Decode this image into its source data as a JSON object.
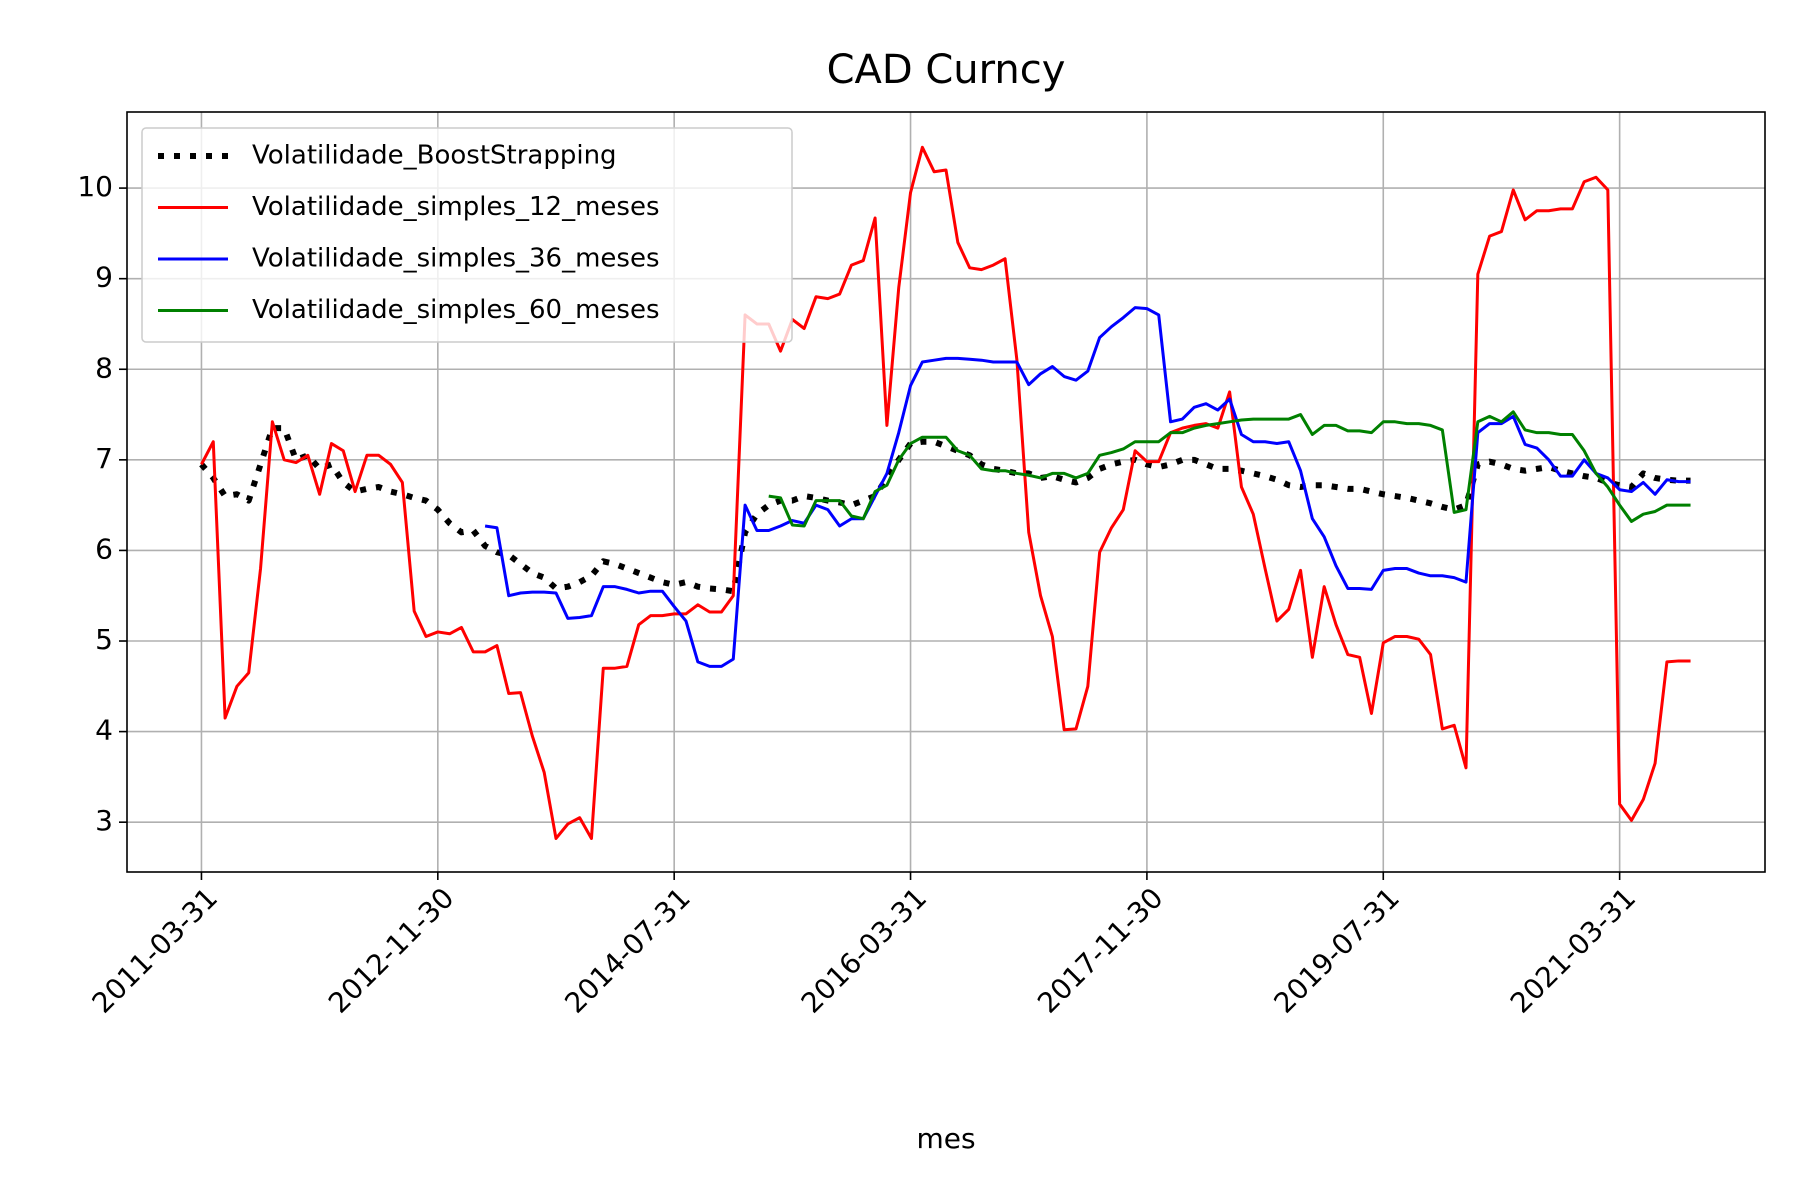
{
  "chart_data": {
    "type": "line",
    "title": "CAD Curncy",
    "xlabel": "mes",
    "categories": [
      "2011-03-31",
      null,
      null,
      null,
      null,
      null,
      null,
      null,
      null,
      null,
      null,
      null,
      null,
      null,
      null,
      null,
      null,
      null,
      null,
      null,
      "2012-11-30",
      null,
      null,
      null,
      null,
      null,
      null,
      null,
      null,
      null,
      null,
      null,
      null,
      null,
      null,
      null,
      null,
      null,
      null,
      null,
      "2014-07-31",
      null,
      null,
      null,
      null,
      null,
      null,
      null,
      null,
      null,
      null,
      null,
      null,
      null,
      null,
      null,
      null,
      null,
      null,
      null,
      "2016-03-31",
      null,
      null,
      null,
      null,
      null,
      null,
      null,
      null,
      null,
      null,
      null,
      null,
      null,
      null,
      null,
      null,
      null,
      null,
      null,
      "2017-11-30",
      null,
      null,
      null,
      null,
      null,
      null,
      null,
      null,
      null,
      null,
      null,
      null,
      null,
      null,
      null,
      null,
      null,
      null,
      null,
      "2019-07-31",
      null,
      null,
      null,
      null,
      null,
      null,
      null,
      null,
      null,
      null,
      null,
      null,
      null,
      null,
      null,
      null,
      null,
      null,
      null,
      "2021-03-31",
      null,
      null,
      null,
      null,
      null,
      null
    ],
    "series": [
      {
        "name": "Volatilidade_BoostStrapping",
        "color": "#000000",
        "linestyle": "dotted",
        "values": [
          6.95,
          6.8,
          6.6,
          6.62,
          6.55,
          6.95,
          7.35,
          7.35,
          7.0,
          7.05,
          6.9,
          6.95,
          6.75,
          6.65,
          6.68,
          6.7,
          6.65,
          6.62,
          6.58,
          6.55,
          6.45,
          6.3,
          6.2,
          6.22,
          6.05,
          5.98,
          5.95,
          5.85,
          5.75,
          5.7,
          5.58,
          5.6,
          5.65,
          5.72,
          5.88,
          5.85,
          5.8,
          5.75,
          5.7,
          5.65,
          5.62,
          5.65,
          5.6,
          5.58,
          5.57,
          5.55,
          6.2,
          6.4,
          6.5,
          6.55,
          6.55,
          6.6,
          6.58,
          6.55,
          6.53,
          6.5,
          6.55,
          6.6,
          6.8,
          7.0,
          7.18,
          7.2,
          7.2,
          7.15,
          7.1,
          7.05,
          6.95,
          6.9,
          6.88,
          6.85,
          6.85,
          6.8,
          6.82,
          6.78,
          6.75,
          6.8,
          6.9,
          6.95,
          6.98,
          7.0,
          6.95,
          6.92,
          6.95,
          7.0,
          7.0,
          6.95,
          6.9,
          6.9,
          6.88,
          6.85,
          6.82,
          6.78,
          6.72,
          6.7,
          6.72,
          6.72,
          6.7,
          6.68,
          6.68,
          6.65,
          6.62,
          6.6,
          6.58,
          6.55,
          6.52,
          6.48,
          6.45,
          6.5,
          6.95,
          6.98,
          6.95,
          6.9,
          6.88,
          6.9,
          6.92,
          6.88,
          6.85,
          6.82,
          6.8,
          6.75,
          6.72,
          6.7,
          6.85,
          6.8,
          6.78,
          6.77,
          6.77
        ]
      },
      {
        "name": "Volatilidade_simples_12_meses",
        "color": "#ff0000",
        "linestyle": "solid",
        "values": [
          6.95,
          7.2,
          4.15,
          4.5,
          4.65,
          5.8,
          7.42,
          7.0,
          6.97,
          7.05,
          6.62,
          7.18,
          7.1,
          6.65,
          7.05,
          7.05,
          6.95,
          6.75,
          5.33,
          5.05,
          5.1,
          5.08,
          5.15,
          4.88,
          4.88,
          4.95,
          4.42,
          4.43,
          3.95,
          3.55,
          2.82,
          2.98,
          3.05,
          2.82,
          4.7,
          4.7,
          4.72,
          5.18,
          5.28,
          5.28,
          5.3,
          5.3,
          5.4,
          5.32,
          5.32,
          5.5,
          8.6,
          8.5,
          8.5,
          8.2,
          8.55,
          8.45,
          8.8,
          8.78,
          8.83,
          9.15,
          9.2,
          9.67,
          7.38,
          8.9,
          9.95,
          10.45,
          10.18,
          10.2,
          9.4,
          9.12,
          9.1,
          9.15,
          9.22,
          8.1,
          6.2,
          5.5,
          5.05,
          4.02,
          4.03,
          4.5,
          5.98,
          6.25,
          6.45,
          7.1,
          6.98,
          6.98,
          7.3,
          7.35,
          7.38,
          7.4,
          7.35,
          7.75,
          6.7,
          6.4,
          5.8,
          5.22,
          5.35,
          5.78,
          4.82,
          5.6,
          5.18,
          4.85,
          4.82,
          4.2,
          4.98,
          5.05,
          5.05,
          5.02,
          4.85,
          4.03,
          4.07,
          3.6,
          9.05,
          9.47,
          9.52,
          9.98,
          9.65,
          9.75,
          9.75,
          9.77,
          9.77,
          10.07,
          10.12,
          9.98,
          3.2,
          3.02,
          3.25,
          3.65,
          4.77,
          4.78,
          4.78
        ]
      },
      {
        "name": "Volatilidade_simples_36_meses",
        "color": "#0000ff",
        "linestyle": "solid",
        "values": [
          null,
          null,
          null,
          null,
          null,
          null,
          null,
          null,
          null,
          null,
          null,
          null,
          null,
          null,
          null,
          null,
          null,
          null,
          null,
          null,
          null,
          null,
          null,
          null,
          6.27,
          6.25,
          5.5,
          5.53,
          5.54,
          5.54,
          5.53,
          5.25,
          5.26,
          5.28,
          5.6,
          5.6,
          5.57,
          5.53,
          5.55,
          5.55,
          5.38,
          5.22,
          4.77,
          4.72,
          4.72,
          4.8,
          6.5,
          6.22,
          6.22,
          6.27,
          6.33,
          6.3,
          6.5,
          6.45,
          6.27,
          6.35,
          6.35,
          6.6,
          6.85,
          7.3,
          7.82,
          8.08,
          8.1,
          8.12,
          8.12,
          8.11,
          8.1,
          8.08,
          8.08,
          8.08,
          7.83,
          7.95,
          8.03,
          7.92,
          7.88,
          7.98,
          8.35,
          8.47,
          8.57,
          8.68,
          8.67,
          8.6,
          7.42,
          7.45,
          7.58,
          7.62,
          7.55,
          7.67,
          7.28,
          7.2,
          7.2,
          7.18,
          7.2,
          6.88,
          6.35,
          6.15,
          5.83,
          5.58,
          5.58,
          5.57,
          5.78,
          5.8,
          5.8,
          5.75,
          5.72,
          5.72,
          5.7,
          5.65,
          7.3,
          7.4,
          7.4,
          7.48,
          7.17,
          7.13,
          7.0,
          6.82,
          6.82,
          7.0,
          6.85,
          6.8,
          6.67,
          6.65,
          6.75,
          6.62,
          6.78,
          6.76,
          6.76
        ]
      },
      {
        "name": "Volatilidade_simples_60_meses",
        "color": "#008000",
        "linestyle": "solid",
        "values": [
          null,
          null,
          null,
          null,
          null,
          null,
          null,
          null,
          null,
          null,
          null,
          null,
          null,
          null,
          null,
          null,
          null,
          null,
          null,
          null,
          null,
          null,
          null,
          null,
          null,
          null,
          null,
          null,
          null,
          null,
          null,
          null,
          null,
          null,
          null,
          null,
          null,
          null,
          null,
          null,
          null,
          null,
          null,
          null,
          null,
          null,
          null,
          null,
          6.6,
          6.58,
          6.28,
          6.27,
          6.55,
          6.55,
          6.55,
          6.38,
          6.35,
          6.65,
          6.72,
          7.0,
          7.18,
          7.25,
          7.25,
          7.25,
          7.1,
          7.05,
          6.9,
          6.88,
          6.88,
          6.85,
          6.83,
          6.8,
          6.85,
          6.85,
          6.8,
          6.85,
          7.05,
          7.08,
          7.12,
          7.2,
          7.2,
          7.2,
          7.3,
          7.3,
          7.35,
          7.38,
          7.4,
          7.42,
          7.44,
          7.45,
          7.45,
          7.45,
          7.45,
          7.5,
          7.28,
          7.38,
          7.38,
          7.32,
          7.32,
          7.3,
          7.42,
          7.42,
          7.4,
          7.4,
          7.38,
          7.33,
          6.42,
          6.45,
          7.42,
          7.48,
          7.42,
          7.53,
          7.33,
          7.3,
          7.3,
          7.28,
          7.28,
          7.1,
          6.85,
          6.7,
          6.5,
          6.32,
          6.4,
          6.43,
          6.5,
          6.5,
          6.5
        ]
      }
    ],
    "ylim": [
      2.45,
      10.84
    ],
    "yticks": [
      3,
      4,
      5,
      6,
      7,
      8,
      9,
      10
    ],
    "grid": true,
    "legend": "upper left"
  }
}
